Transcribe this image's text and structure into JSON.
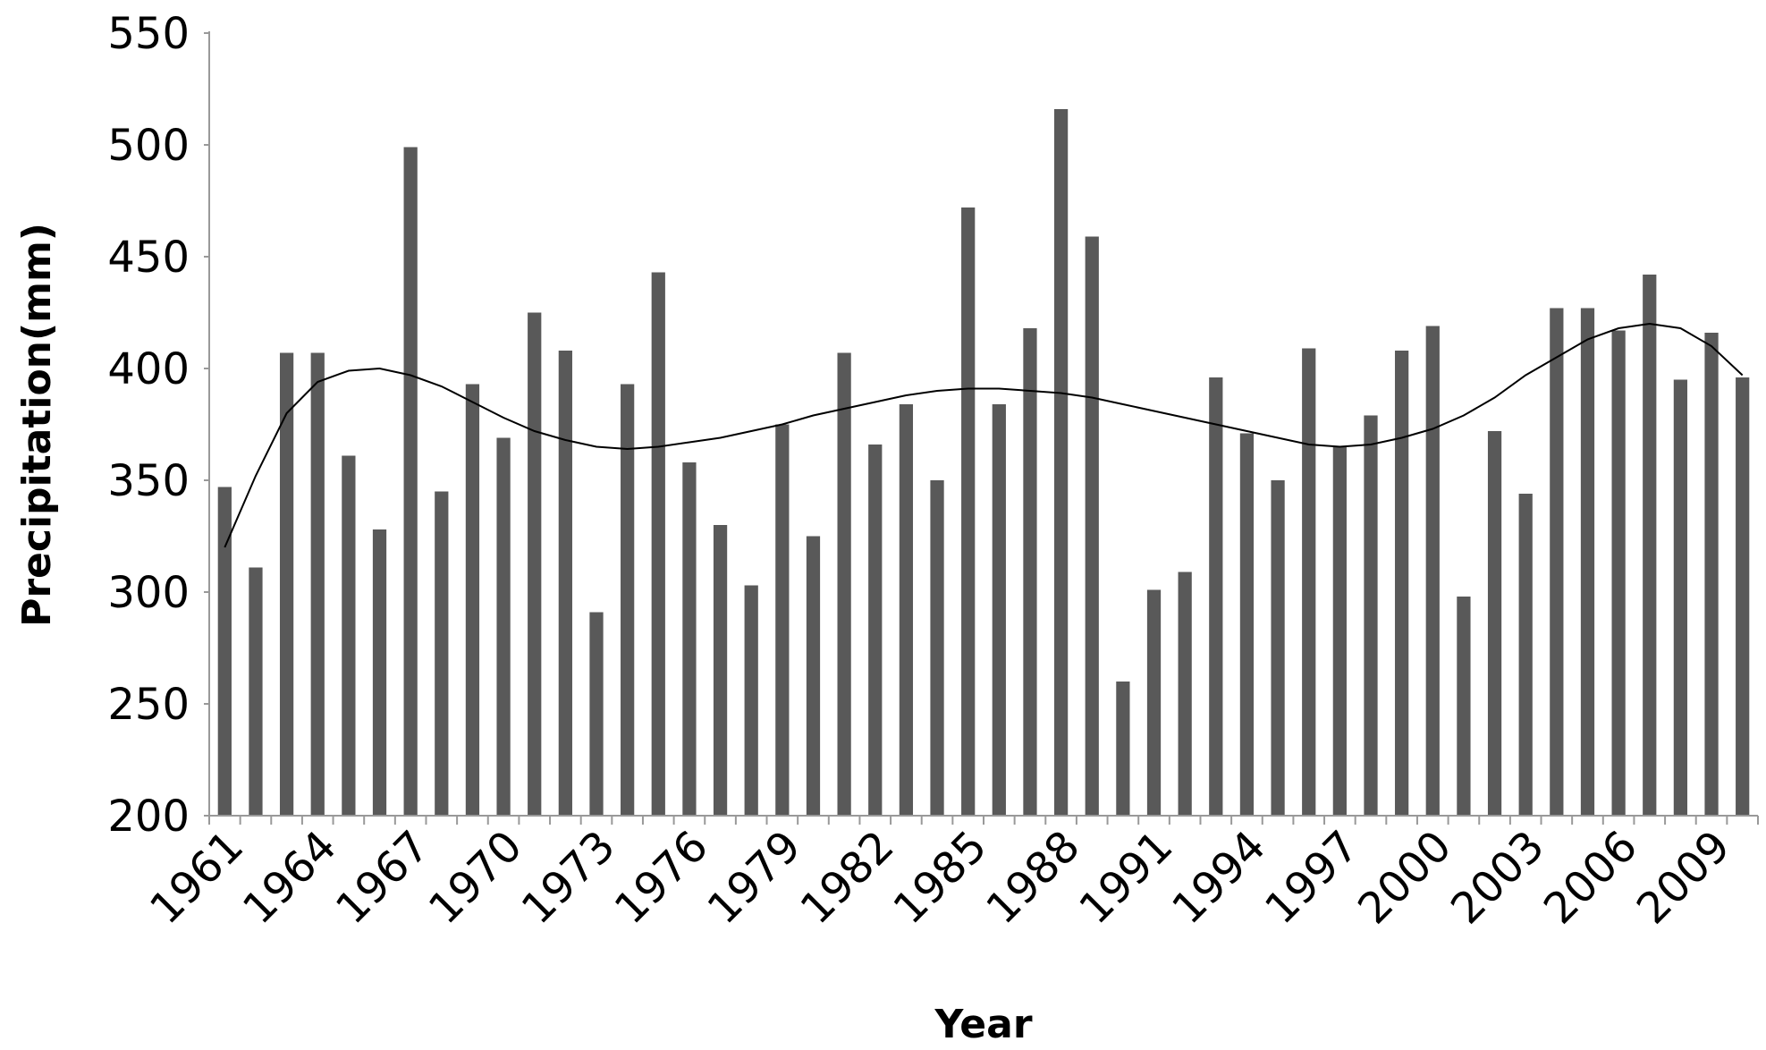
{
  "chart_data": {
    "type": "bar",
    "x_label": "Year",
    "y_label": "Precipitation(mm)",
    "categories": [
      "1961",
      null,
      null,
      "1964",
      null,
      null,
      "1967",
      null,
      null,
      "1970",
      null,
      null,
      "1973",
      null,
      null,
      "1976",
      null,
      null,
      "1979",
      null,
      null,
      "1982",
      null,
      null,
      "1985",
      null,
      null,
      "1988",
      null,
      null,
      "1991",
      null,
      null,
      "1994",
      null,
      null,
      "1997",
      null,
      null,
      "2000",
      null,
      null,
      "2003",
      null,
      null,
      "2006",
      null,
      null,
      "2009",
      null
    ],
    "series": [
      {
        "type": "bar",
        "color": "#595959",
        "values": [
          347,
          311,
          407,
          407,
          361,
          328,
          499,
          345,
          393,
          369,
          425,
          408,
          291,
          393,
          443,
          358,
          330,
          303,
          375,
          325,
          407,
          366,
          384,
          350,
          472,
          384,
          418,
          516,
          459,
          260,
          301,
          309,
          396,
          371,
          350,
          409,
          365,
          379,
          408,
          419,
          298,
          372,
          344,
          427,
          427,
          417,
          442,
          395,
          416,
          396
        ]
      },
      {
        "type": "line",
        "color": "#000000",
        "values": [
          320,
          352,
          380,
          394,
          399,
          400,
          397,
          392,
          385,
          378,
          372,
          368,
          365,
          364,
          365,
          367,
          369,
          372,
          375,
          379,
          382,
          385,
          388,
          390,
          391,
          391,
          390,
          389,
          387,
          384,
          381,
          378,
          375,
          372,
          369,
          366,
          365,
          366,
          369,
          373,
          379,
          387,
          397,
          405,
          413,
          418,
          420,
          418,
          410,
          397
        ]
      }
    ],
    "ylim": [
      200,
      550
    ],
    "yticks": [
      200,
      250,
      300,
      350,
      400,
      450,
      500,
      550
    ],
    "grid": false
  }
}
